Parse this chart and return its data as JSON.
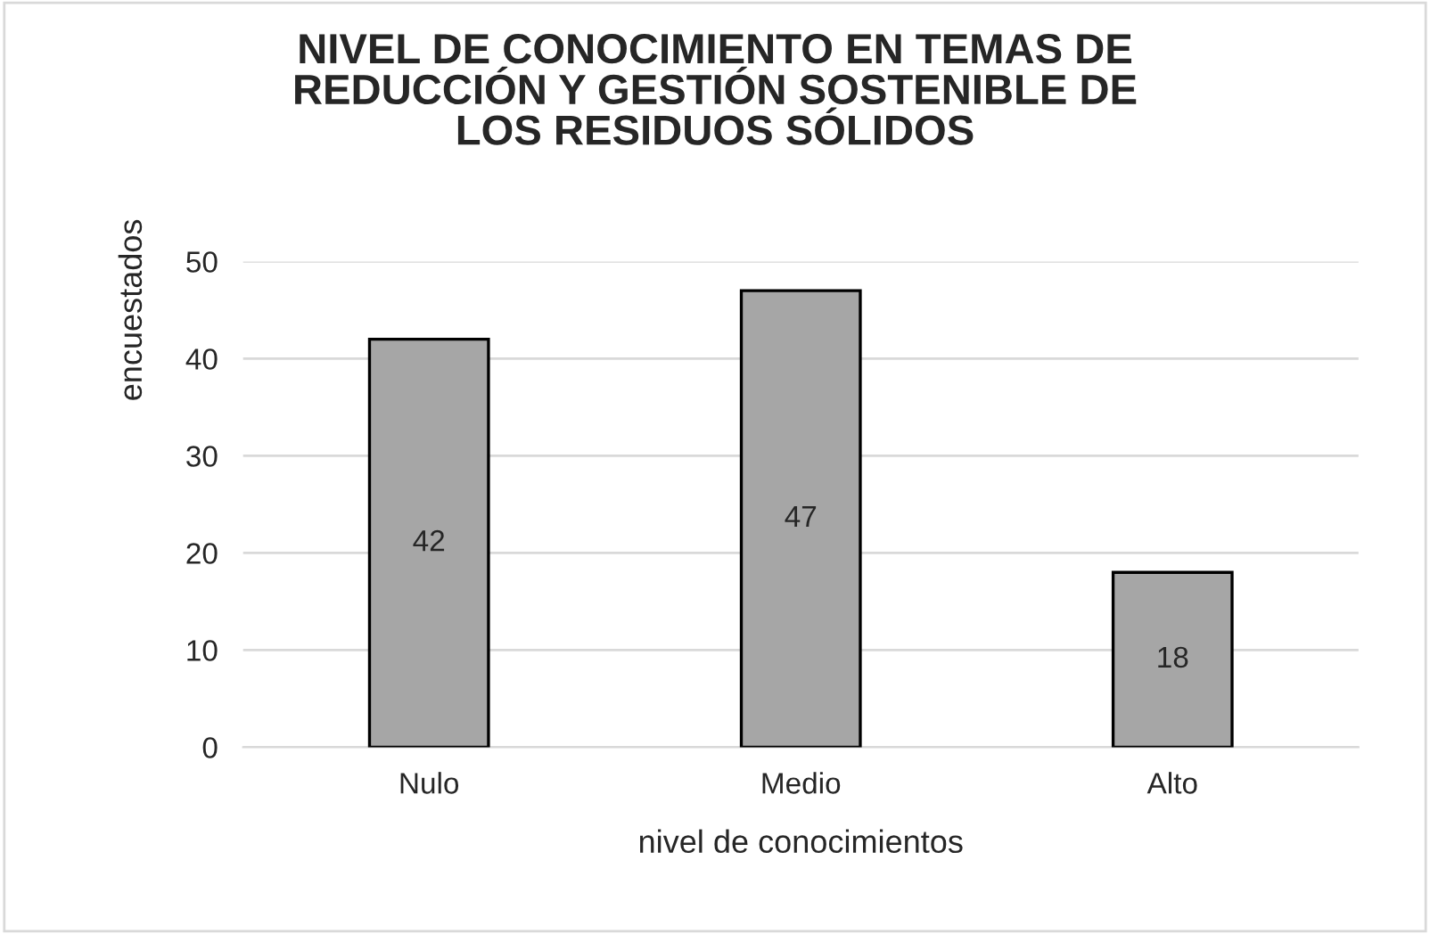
{
  "chart_data": {
    "type": "bar",
    "title": "NIVEL DE CONOCIMIENTO EN TEMAS DE\nREDUCCIÓN Y GESTIÓN SOSTENIBLE DE\nLOS RESIDUOS SÓLIDOS",
    "xlabel": "nivel de conocimientos",
    "ylabel": "encuestados",
    "categories": [
      "Nulo",
      "Medio",
      "Alto"
    ],
    "values": [
      42,
      47,
      18
    ],
    "color": "#a6a6a6",
    "ylim": [
      0,
      50
    ],
    "yticks": [
      0,
      10,
      20,
      30,
      40,
      50
    ],
    "grid": "y",
    "data_labels": true
  }
}
